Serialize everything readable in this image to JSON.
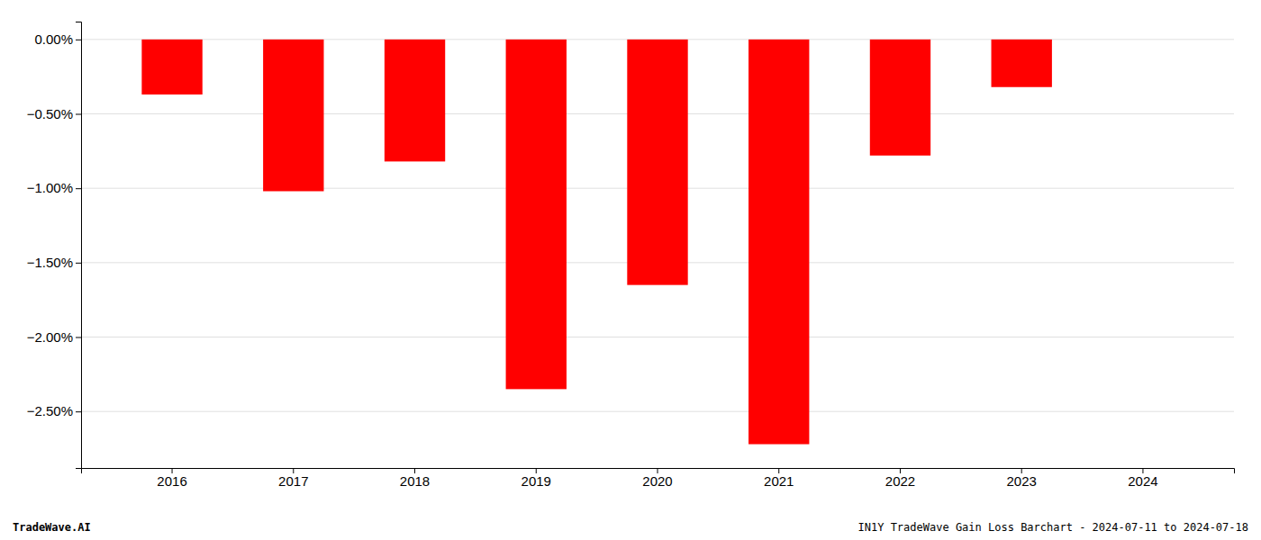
{
  "chart_data": {
    "type": "bar",
    "categories": [
      "2016",
      "2017",
      "2018",
      "2019",
      "2020",
      "2021",
      "2022",
      "2023",
      "2024"
    ],
    "values": [
      -0.37,
      -1.02,
      -0.82,
      -2.35,
      -1.65,
      -2.72,
      -0.78,
      -0.32,
      0.0
    ],
    "color": "#ff0000",
    "ylim": [
      -2.88,
      0.12
    ],
    "yticks": [
      {
        "value": 0.0,
        "label": "0.00%"
      },
      {
        "value": -0.5,
        "label": "−0.50%"
      },
      {
        "value": -1.0,
        "label": "−1.00%"
      },
      {
        "value": -1.5,
        "label": "−1.50%"
      },
      {
        "value": -2.0,
        "label": "−2.00%"
      },
      {
        "value": -2.5,
        "label": "−2.50%"
      }
    ],
    "grid": true,
    "annotations": [
      "TradeWave.AI",
      "IN1Y TradeWave Gain Loss Barchart - 2024-07-11 to 2024-07-18"
    ]
  }
}
